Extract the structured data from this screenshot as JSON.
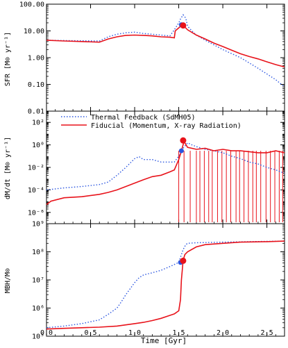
{
  "colors": {
    "thermal": "#2a55e0",
    "fiducial": "#e8121a",
    "axis": "#000000"
  },
  "xaxis": {
    "label": "Time  [Gyr]",
    "range": [
      0.0,
      2.7
    ],
    "ticks": [
      0.0,
      0.5,
      1.0,
      1.5,
      2.0,
      2.5
    ],
    "tick_labels": [
      "0.0",
      "0.5",
      "1.0",
      "1.5",
      "2.0",
      "2.5"
    ]
  },
  "legend": {
    "entries": [
      "Thermal Feedback (SdMH05)",
      "Fiducial (Momentum, X-ray Radiation)"
    ]
  },
  "chart_data": [
    {
      "type": "line",
      "ylabel": "SFR [M⊙ yr⁻¹]",
      "yscale": "log",
      "ylim_exp": [
        -2,
        2
      ],
      "ytick_exps": [
        -2,
        -1,
        0,
        1,
        2
      ],
      "ytick_labels": [
        "0.01",
        "0.10",
        "1.00",
        "10.00",
        "100.00"
      ],
      "series": [
        {
          "key": "thermal",
          "x": [
            0.0,
            0.3,
            0.6,
            0.7,
            0.8,
            0.9,
            1.0,
            1.1,
            1.2,
            1.3,
            1.4,
            1.45,
            1.5,
            1.52,
            1.55,
            1.58,
            1.6,
            1.65,
            1.7,
            1.8,
            1.9,
            2.0,
            2.2,
            2.4,
            2.6,
            2.7
          ],
          "y": [
            4.5,
            4.3,
            4.2,
            6.0,
            7.5,
            8.5,
            9.0,
            8.0,
            7.5,
            7.0,
            6.5,
            11.0,
            20.0,
            28.0,
            40.0,
            30.0,
            15.0,
            10.0,
            7.0,
            4.5,
            3.0,
            2.0,
            1.0,
            0.4,
            0.15,
            0.08
          ]
        },
        {
          "key": "fiducial",
          "x": [
            0.0,
            0.2,
            0.4,
            0.6,
            0.7,
            0.8,
            0.9,
            1.0,
            1.1,
            1.2,
            1.3,
            1.4,
            1.45,
            1.46,
            1.5,
            1.53,
            1.55,
            1.6,
            1.7,
            1.8,
            1.9,
            2.0,
            2.1,
            2.2,
            2.3,
            2.4,
            2.5,
            2.6,
            2.7
          ],
          "y": [
            4.5,
            4.2,
            4.0,
            3.8,
            5.0,
            6.0,
            6.8,
            7.0,
            6.8,
            6.5,
            6.0,
            5.8,
            5.5,
            10.0,
            13.0,
            16.0,
            16.0,
            11.0,
            7.0,
            5.0,
            3.5,
            2.6,
            1.9,
            1.4,
            1.1,
            0.9,
            0.7,
            0.55,
            0.45
          ]
        }
      ],
      "markers": [
        {
          "key": "thermal",
          "x": 1.53,
          "y": 17.0
        },
        {
          "key": "fiducial",
          "x": 1.55,
          "y": 16.0
        }
      ]
    },
    {
      "type": "line",
      "ylabel": "dM/dt [M⊙ yr⁻¹]",
      "yscale": "log",
      "ylim_exp": [
        -7,
        3
      ],
      "ytick_exps": [
        -6,
        -4,
        -2,
        0,
        2
      ],
      "ytick_labels": [
        "10⁻⁶",
        "10⁻⁴",
        "10⁻²",
        "10⁰",
        "10²"
      ],
      "series": [
        {
          "key": "thermal",
          "x": [
            0.0,
            0.2,
            0.4,
            0.6,
            0.7,
            0.8,
            0.9,
            1.0,
            1.05,
            1.1,
            1.2,
            1.3,
            1.4,
            1.45,
            1.5,
            1.55,
            1.6,
            1.65,
            1.7,
            1.8,
            1.9,
            2.0,
            2.1,
            2.2,
            2.3,
            2.4,
            2.5,
            2.6,
            2.7
          ],
          "y": [
            0.0001,
            0.00015,
            0.0002,
            0.0003,
            0.0005,
            0.002,
            0.01,
            0.06,
            0.09,
            0.05,
            0.05,
            0.03,
            0.03,
            0.03,
            0.1,
            0.5,
            1.5,
            1.0,
            0.7,
            0.4,
            0.3,
            0.2,
            0.1,
            0.06,
            0.03,
            0.02,
            0.01,
            0.006,
            0.003
          ]
        },
        {
          "key": "fiducial",
          "x": [
            0.0,
            0.05,
            0.2,
            0.4,
            0.6,
            0.7,
            0.8,
            0.9,
            1.0,
            1.1,
            1.2,
            1.3,
            1.4,
            1.45,
            1.5,
            1.53,
            1.56,
            1.6,
            1.65,
            1.7,
            1.8,
            1.9,
            2.0,
            2.1,
            2.2,
            2.3,
            2.4,
            2.5,
            2.6,
            2.7
          ],
          "y": [
            5e-06,
            1e-05,
            2e-05,
            2.5e-05,
            4e-05,
            6e-05,
            0.0001,
            0.0002,
            0.0004,
            0.0008,
            0.0015,
            0.002,
            0.004,
            0.006,
            0.05,
            0.3,
            2.0,
            0.6,
            0.5,
            0.4,
            0.5,
            0.3,
            0.4,
            0.3,
            0.3,
            0.25,
            0.2,
            0.2,
            0.3,
            0.2
          ]
        }
      ],
      "fiducial_dips_x": [
        1.5,
        1.56,
        1.63,
        1.7,
        1.74,
        1.79,
        1.84,
        1.88,
        1.94,
        1.99,
        2.04,
        2.09,
        2.15,
        2.19,
        2.24,
        2.29,
        2.34,
        2.38,
        2.43,
        2.49,
        2.54,
        2.59,
        2.64,
        2.68
      ],
      "markers": [
        {
          "key": "thermal",
          "x": 1.53,
          "y": 0.3
        },
        {
          "key": "fiducial",
          "x": 1.55,
          "y": 2.5
        }
      ]
    },
    {
      "type": "line",
      "ylabel": "MBH/M⊙",
      "yscale": "log",
      "ylim_exp": [
        5,
        9
      ],
      "ytick_exps": [
        5,
        6,
        7,
        8,
        9
      ],
      "ytick_labels": [
        "10⁵",
        "10⁶",
        "10⁷",
        "10⁸",
        "10⁹"
      ],
      "series": [
        {
          "key": "thermal",
          "x": [
            0.0,
            0.2,
            0.4,
            0.6,
            0.7,
            0.8,
            0.85,
            0.9,
            1.0,
            1.05,
            1.1,
            1.2,
            1.3,
            1.4,
            1.5,
            1.55,
            1.58,
            1.6,
            1.7,
            2.0,
            2.3,
            2.7
          ],
          "y": [
            200000,
            230000,
            280000,
            380000,
            600000,
            1000000,
            1700000,
            3000000,
            8000000,
            12000000,
            15000000,
            18000000,
            22000000,
            30000000,
            42000000,
            120000000,
            180000000,
            200000000,
            210000000,
            220000000,
            230000000,
            240000000
          ]
        },
        {
          "key": "fiducial",
          "x": [
            0.0,
            0.2,
            0.4,
            0.6,
            0.8,
            1.0,
            1.1,
            1.2,
            1.3,
            1.4,
            1.45,
            1.5,
            1.52,
            1.53,
            1.55,
            1.57,
            1.6,
            1.7,
            1.8,
            2.0,
            2.2,
            2.5,
            2.7
          ],
          "y": [
            180000,
            190000,
            200000,
            210000,
            230000,
            280000,
            310000,
            360000,
            430000,
            550000,
            620000,
            800000,
            2000000,
            10000000,
            50000000,
            80000000,
            100000000,
            150000000,
            180000000,
            200000000,
            220000000,
            230000000,
            240000000
          ]
        }
      ],
      "markers": [
        {
          "key": "thermal",
          "x": 1.52,
          "y": 42000000
        },
        {
          "key": "fiducial",
          "x": 1.55,
          "y": 48000000
        }
      ]
    }
  ]
}
